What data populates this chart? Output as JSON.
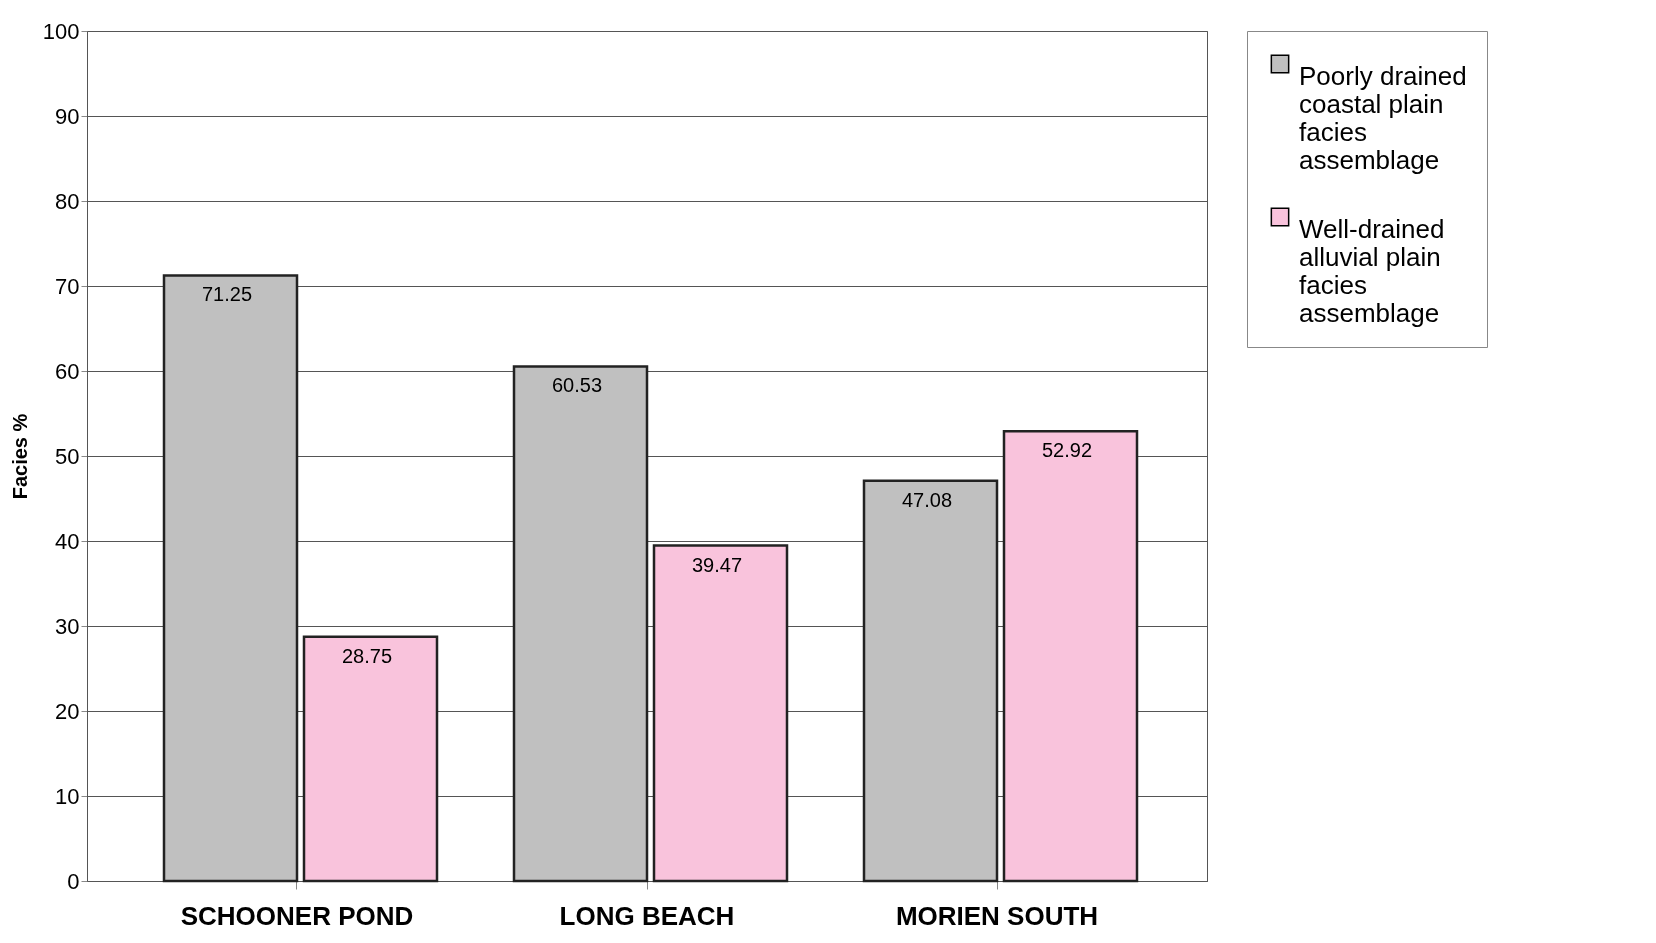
{
  "chart_data": {
    "type": "bar",
    "ylabel": "Facies %",
    "categories": [
      "SCHOONER POND",
      "LONG BEACH",
      "MORIEN SOUTH"
    ],
    "series": [
      {
        "name": "Poorly drained coastal plain facies assemblage",
        "color": "#c0c0c0",
        "values": [
          71.25,
          60.53,
          47.08
        ]
      },
      {
        "name": "Well-drained alluvial plain facies assemblage",
        "color": "#f9c3dc",
        "values": [
          28.75,
          39.47,
          52.92
        ]
      }
    ],
    "ylim": [
      0,
      100
    ],
    "yticks": [
      0,
      10,
      20,
      30,
      40,
      50,
      60,
      70,
      80,
      90,
      100
    ],
    "grid": "y",
    "legend": "right",
    "data_labels": true
  }
}
